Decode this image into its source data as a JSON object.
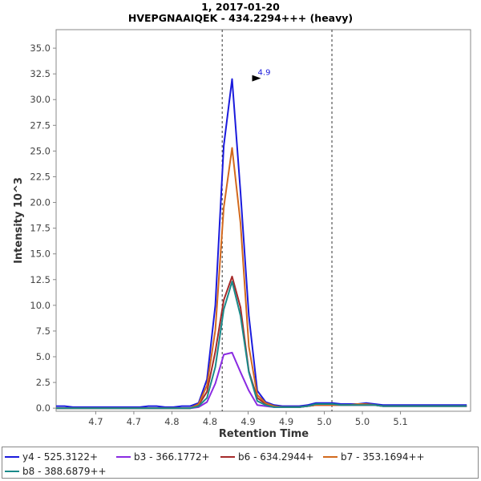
{
  "chart_data": {
    "type": "line",
    "title": "1, 2017-01-20",
    "subtitle": "HVEPGNAAIQEK - 434.2294+++ (heavy)",
    "xlabel": "Retention Time",
    "ylabel": "Intensity 10^3",
    "xlim": [
      4.648,
      5.192
    ],
    "ylim": [
      -0.3,
      36.8
    ],
    "x_tick_labels": [
      "4.7",
      "4.7",
      "4.8",
      "4.8",
      "4.9",
      "4.9",
      "5.0",
      "5.0",
      "5.1"
    ],
    "x_tick_values": [
      4.7,
      4.75,
      4.8,
      4.85,
      4.9,
      4.95,
      5.0,
      5.05,
      5.1
    ],
    "y_ticks": [
      0.0,
      2.5,
      5.0,
      7.5,
      10.0,
      12.5,
      15.0,
      17.5,
      20.0,
      22.5,
      25.0,
      27.5,
      30.0,
      32.5,
      35.0
    ],
    "y_tick_labels": [
      "0.0",
      "2.5",
      "5.0",
      "7.5",
      "10.0",
      "12.5",
      "15.0",
      "17.5",
      "20.0",
      "22.5",
      "25.0",
      "27.5",
      "30.0",
      "32.5",
      "35.0"
    ],
    "boundary_lines": [
      4.866,
      5.01
    ],
    "peak_label": {
      "text": "4.9",
      "x": 4.92,
      "y": 32.0
    },
    "grid": false,
    "legend_position": "bottom",
    "x": [
      4.648,
      4.659,
      4.67,
      4.681,
      4.692,
      4.703,
      4.714,
      4.725,
      4.736,
      4.747,
      4.758,
      4.769,
      4.78,
      4.791,
      4.802,
      4.813,
      4.824,
      4.835,
      4.846,
      4.857,
      4.868,
      4.879,
      4.89,
      4.901,
      4.912,
      4.923,
      4.934,
      4.945,
      4.956,
      4.967,
      4.978,
      4.989,
      5.0,
      5.011,
      5.022,
      5.033,
      5.044,
      5.055,
      5.066,
      5.077,
      5.088,
      5.099,
      5.11,
      5.121,
      5.132,
      5.143,
      5.154,
      5.165,
      5.176,
      5.187
    ],
    "series": [
      {
        "name": "y4 - 525.3122+",
        "color": "#1a1adc",
        "values": [
          0.2,
          0.2,
          0.1,
          0.1,
          0.1,
          0.1,
          0.1,
          0.1,
          0.1,
          0.1,
          0.1,
          0.2,
          0.2,
          0.1,
          0.1,
          0.2,
          0.2,
          0.5,
          2.8,
          10.0,
          25.5,
          32.0,
          21.0,
          9.0,
          1.7,
          0.6,
          0.3,
          0.2,
          0.2,
          0.2,
          0.3,
          0.5,
          0.5,
          0.5,
          0.4,
          0.4,
          0.4,
          0.5,
          0.4,
          0.3,
          0.3,
          0.3,
          0.3,
          0.3,
          0.3,
          0.3,
          0.3,
          0.3,
          0.3,
          0.3
        ]
      },
      {
        "name": "b3 - 366.1772+",
        "color": "#8a2be2",
        "values": [
          0.0,
          0.0,
          0.0,
          0.0,
          0.0,
          0.0,
          0.0,
          0.0,
          0.0,
          0.0,
          0.0,
          0.0,
          0.0,
          0.0,
          0.0,
          0.0,
          0.0,
          0.1,
          0.6,
          2.4,
          5.2,
          5.4,
          3.5,
          1.7,
          0.3,
          0.2,
          0.1,
          0.1,
          0.1,
          0.1,
          0.2,
          0.3,
          0.3,
          0.3,
          0.3,
          0.3,
          0.3,
          0.3,
          0.3,
          0.2,
          0.2,
          0.2,
          0.2,
          0.2,
          0.2,
          0.2,
          0.2,
          0.2,
          0.2,
          0.2
        ]
      },
      {
        "name": "b6 - 634.2944+",
        "color": "#a52a2a",
        "values": [
          0.0,
          0.0,
          0.0,
          0.0,
          0.0,
          0.0,
          0.0,
          0.0,
          0.0,
          0.0,
          0.0,
          0.0,
          0.0,
          0.0,
          0.0,
          0.0,
          0.0,
          0.3,
          1.6,
          5.5,
          10.5,
          12.8,
          9.8,
          3.6,
          1.0,
          0.4,
          0.2,
          0.1,
          0.1,
          0.1,
          0.2,
          0.3,
          0.3,
          0.3,
          0.3,
          0.3,
          0.3,
          0.3,
          0.3,
          0.2,
          0.2,
          0.2,
          0.2,
          0.2,
          0.2,
          0.2,
          0.2,
          0.2,
          0.2,
          0.2
        ]
      },
      {
        "name": "b7 - 353.1694++",
        "color": "#d2691e",
        "values": [
          0.0,
          0.0,
          0.0,
          0.0,
          0.0,
          0.0,
          0.0,
          0.0,
          0.0,
          0.0,
          0.0,
          0.0,
          0.0,
          0.0,
          0.0,
          0.0,
          0.0,
          0.4,
          2.2,
          7.6,
          19.5,
          25.3,
          18.0,
          6.0,
          1.3,
          0.5,
          0.2,
          0.1,
          0.1,
          0.1,
          0.2,
          0.3,
          0.3,
          0.3,
          0.3,
          0.3,
          0.4,
          0.4,
          0.3,
          0.2,
          0.2,
          0.2,
          0.2,
          0.2,
          0.2,
          0.2,
          0.2,
          0.2,
          0.2,
          0.2
        ]
      },
      {
        "name": "b8 - 388.6879++",
        "color": "#1a8a8a",
        "values": [
          0.0,
          0.0,
          0.0,
          0.0,
          0.0,
          0.0,
          0.0,
          0.0,
          0.0,
          0.0,
          0.0,
          0.0,
          0.0,
          0.0,
          0.0,
          0.0,
          0.0,
          0.2,
          1.0,
          4.0,
          9.6,
          12.3,
          9.0,
          3.5,
          0.7,
          0.3,
          0.1,
          0.1,
          0.1,
          0.1,
          0.2,
          0.4,
          0.4,
          0.4,
          0.3,
          0.3,
          0.3,
          0.3,
          0.3,
          0.2,
          0.2,
          0.2,
          0.2,
          0.2,
          0.2,
          0.2,
          0.2,
          0.2,
          0.2,
          0.2
        ]
      }
    ]
  }
}
